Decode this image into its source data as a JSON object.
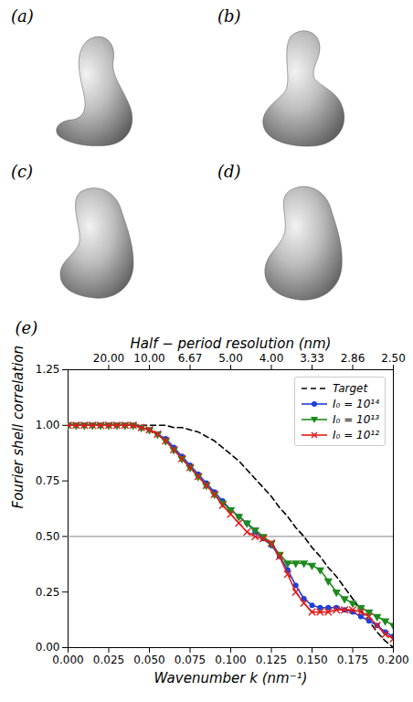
{
  "panels": [
    {
      "label": "(a)"
    },
    {
      "label": "(b)"
    },
    {
      "label": "(c)"
    },
    {
      "label": "(d)"
    }
  ],
  "chart_data": {
    "type": "line",
    "panel": "(e)",
    "xlabel": "Wavenumber k (nm⁻¹)",
    "ylabel": "Fourier shell correlation",
    "x2label": "Half − period resolution (nm)",
    "xlim": [
      0,
      0.2
    ],
    "ylim": [
      0,
      1.25
    ],
    "xticks": [
      {
        "value": 0,
        "label": "0.000"
      },
      {
        "value": 0.025,
        "label": "0.025"
      },
      {
        "value": 0.05,
        "label": "0.050"
      },
      {
        "value": 0.075,
        "label": "0.075"
      },
      {
        "value": 0.1,
        "label": "0.100"
      },
      {
        "value": 0.125,
        "label": "0.125"
      },
      {
        "value": 0.15,
        "label": "0.150"
      },
      {
        "value": 0.175,
        "label": "0.175"
      },
      {
        "value": 0.2,
        "label": "0.200"
      }
    ],
    "x2ticks": [
      {
        "value": 0.025,
        "label": "20.00"
      },
      {
        "value": 0.05,
        "label": "10.00"
      },
      {
        "value": 0.075,
        "label": "6.67"
      },
      {
        "value": 0.1,
        "label": "5.00"
      },
      {
        "value": 0.125,
        "label": "4.00"
      },
      {
        "value": 0.15,
        "label": "3.33"
      },
      {
        "value": 0.175,
        "label": "2.86"
      },
      {
        "value": 0.2,
        "label": "2.50"
      }
    ],
    "yticks": [
      {
        "value": 0,
        "label": "0.00"
      },
      {
        "value": 0.25,
        "label": "0.25"
      },
      {
        "value": 0.5,
        "label": "0.50"
      },
      {
        "value": 0.75,
        "label": "0.75"
      },
      {
        "value": 1,
        "label": "1.00"
      },
      {
        "value": 1.25,
        "label": "1.25"
      }
    ],
    "hline": 0.5,
    "legend": "upper right",
    "grid": false,
    "x": [
      0,
      0.005,
      0.01,
      0.015,
      0.02,
      0.025,
      0.03,
      0.035,
      0.04,
      0.045,
      0.05,
      0.055,
      0.06,
      0.065,
      0.07,
      0.075,
      0.08,
      0.085,
      0.09,
      0.095,
      0.1,
      0.105,
      0.11,
      0.115,
      0.12,
      0.125,
      0.13,
      0.135,
      0.14,
      0.145,
      0.15,
      0.155,
      0.16,
      0.165,
      0.17,
      0.175,
      0.18,
      0.185,
      0.19,
      0.195,
      0.2
    ],
    "series": [
      {
        "name": "Target",
        "color": "#000000",
        "line_style": "dashed",
        "marker": "none",
        "values": [
          1,
          1,
          1,
          1,
          1,
          1,
          1,
          1,
          1,
          1,
          1,
          1,
          1,
          0.99,
          0.99,
          0.98,
          0.97,
          0.95,
          0.93,
          0.9,
          0.87,
          0.84,
          0.8,
          0.76,
          0.72,
          0.68,
          0.63,
          0.59,
          0.54,
          0.5,
          0.45,
          0.41,
          0.36,
          0.32,
          0.27,
          0.22,
          0.17,
          0.12,
          0.07,
          0.03,
          0
        ]
      },
      {
        "name": "I₀ = 10¹⁴",
        "color": "#1f3fd6",
        "line_style": "solid",
        "marker": "circle",
        "values": [
          1,
          1,
          1,
          1,
          1,
          1,
          1,
          1,
          1,
          0.99,
          0.98,
          0.96,
          0.94,
          0.9,
          0.86,
          0.82,
          0.78,
          0.74,
          0.7,
          0.66,
          0.62,
          0.59,
          0.56,
          0.52,
          0.49,
          0.46,
          0.41,
          0.35,
          0.28,
          0.22,
          0.19,
          0.18,
          0.18,
          0.18,
          0.17,
          0.16,
          0.14,
          0.12,
          0.1,
          0.07,
          0.05
        ]
      },
      {
        "name": "I₀ = 10¹³",
        "color": "#1e8a1e",
        "line_style": "solid",
        "marker": "triangle_down",
        "values": [
          1,
          1,
          1,
          1,
          1,
          1,
          1,
          1,
          1,
          0.99,
          0.98,
          0.96,
          0.93,
          0.89,
          0.85,
          0.81,
          0.77,
          0.73,
          0.69,
          0.65,
          0.62,
          0.59,
          0.56,
          0.53,
          0.5,
          0.47,
          0.42,
          0.38,
          0.38,
          0.38,
          0.37,
          0.35,
          0.3,
          0.25,
          0.22,
          0.2,
          0.18,
          0.16,
          0.14,
          0.12,
          0.1
        ]
      },
      {
        "name": "I₀ = 10¹²",
        "color": "#e01b1b",
        "line_style": "solid",
        "marker": "x",
        "values": [
          1,
          1,
          1,
          1,
          1,
          1,
          1,
          1,
          1,
          0.99,
          0.98,
          0.96,
          0.93,
          0.89,
          0.85,
          0.81,
          0.77,
          0.73,
          0.69,
          0.64,
          0.6,
          0.56,
          0.52,
          0.5,
          0.49,
          0.47,
          0.41,
          0.33,
          0.25,
          0.2,
          0.16,
          0.16,
          0.16,
          0.17,
          0.17,
          0.17,
          0.16,
          0.14,
          0.1,
          0.06,
          0.04
        ]
      }
    ]
  }
}
